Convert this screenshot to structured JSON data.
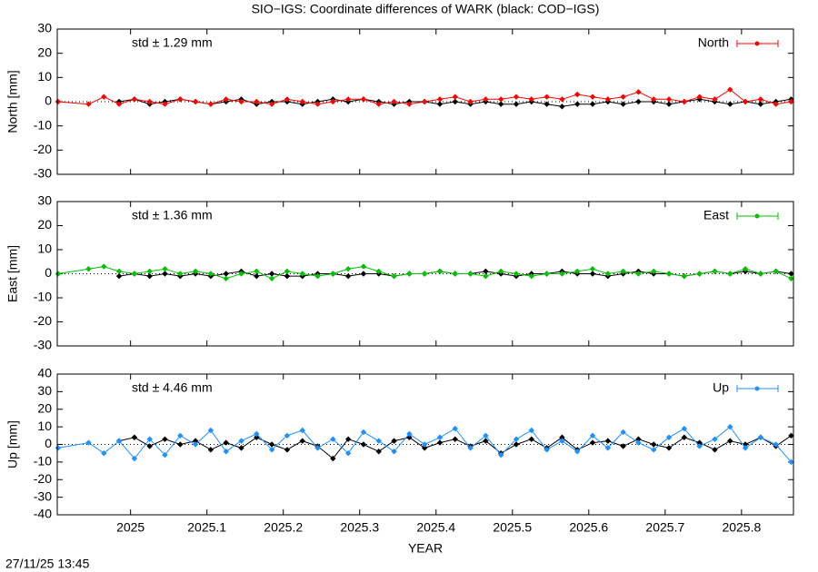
{
  "timestamp": "27/11/25 13:45",
  "chart_data": [
    {
      "type": "line",
      "title": "SIO−IGS: Coordinate differences of WARK (black: COD−IGS)",
      "ylabel": "North [mm]",
      "annotation": "std ± 1.29 mm",
      "annotation_color": "#ff0000",
      "xlim": [
        2024.904,
        2025.868
      ],
      "xticks": [
        2025,
        2025.1,
        2025.2,
        2025.3,
        2025.4,
        2025.5,
        2025.6,
        2025.7,
        2025.8
      ],
      "ylim": [
        -30,
        30
      ],
      "yticks": [
        -30,
        -20,
        -10,
        0,
        10,
        20,
        30
      ],
      "zeroline": true,
      "legend": "top-right",
      "x": [
        2024.905,
        2024.945,
        2024.965,
        2024.985,
        2025.005,
        2025.025,
        2025.045,
        2025.065,
        2025.085,
        2025.105,
        2025.125,
        2025.145,
        2025.165,
        2025.185,
        2025.205,
        2025.225,
        2025.245,
        2025.265,
        2025.285,
        2025.305,
        2025.325,
        2025.345,
        2025.365,
        2025.385,
        2025.405,
        2025.425,
        2025.445,
        2025.465,
        2025.485,
        2025.505,
        2025.525,
        2025.545,
        2025.565,
        2025.585,
        2025.605,
        2025.625,
        2025.645,
        2025.665,
        2025.685,
        2025.705,
        2025.725,
        2025.745,
        2025.765,
        2025.785,
        2025.805,
        2025.825,
        2025.845,
        2025.865
      ],
      "series": [
        {
          "color": "#000000",
          "values": [
            null,
            null,
            null,
            0,
            1,
            -1,
            0,
            1,
            0,
            -1,
            0,
            1,
            -1,
            0,
            0,
            -1,
            0,
            1,
            0,
            1,
            0,
            -1,
            0,
            0,
            -1,
            0,
            -1,
            0,
            -1,
            -1,
            0,
            -1,
            -2,
            -1,
            -1,
            0,
            -1,
            0,
            0,
            -1,
            0,
            1,
            0,
            -1,
            0,
            -1,
            0,
            1
          ]
        },
        {
          "name": "North",
          "color": "#ff0000",
          "values": [
            0,
            -1,
            2,
            -1,
            1,
            0,
            -1,
            1,
            0,
            -1,
            1,
            0,
            0,
            -1,
            1,
            0,
            -1,
            0,
            1,
            1,
            -1,
            0,
            -1,
            0,
            1,
            2,
            0,
            1,
            1,
            2,
            1,
            2,
            1,
            3,
            2,
            1,
            2,
            4,
            1,
            1,
            0,
            2,
            1,
            5,
            0,
            1,
            -1,
            0
          ]
        }
      ]
    },
    {
      "type": "line",
      "ylabel": "East [mm]",
      "annotation": "std ± 1.36 mm",
      "annotation_color": "#00c000",
      "xlim": [
        2024.904,
        2025.868
      ],
      "xticks": [
        2025,
        2025.1,
        2025.2,
        2025.3,
        2025.4,
        2025.5,
        2025.6,
        2025.7,
        2025.8
      ],
      "ylim": [
        -30,
        30
      ],
      "yticks": [
        -30,
        -20,
        -10,
        0,
        10,
        20,
        30
      ],
      "zeroline": true,
      "legend": "top-right",
      "x": [
        2024.905,
        2024.945,
        2024.965,
        2024.985,
        2025.005,
        2025.025,
        2025.045,
        2025.065,
        2025.085,
        2025.105,
        2025.125,
        2025.145,
        2025.165,
        2025.185,
        2025.205,
        2025.225,
        2025.245,
        2025.265,
        2025.285,
        2025.305,
        2025.325,
        2025.345,
        2025.365,
        2025.385,
        2025.405,
        2025.425,
        2025.445,
        2025.465,
        2025.485,
        2025.505,
        2025.525,
        2025.545,
        2025.565,
        2025.585,
        2025.605,
        2025.625,
        2025.645,
        2025.665,
        2025.685,
        2025.705,
        2025.725,
        2025.745,
        2025.765,
        2025.785,
        2025.805,
        2025.825,
        2025.845,
        2025.865
      ],
      "series": [
        {
          "color": "#000000",
          "values": [
            null,
            null,
            null,
            -1,
            0,
            -1,
            0,
            -1,
            0,
            -1,
            0,
            1,
            -1,
            0,
            -1,
            -1,
            0,
            0,
            -1,
            0,
            0,
            -1,
            0,
            0,
            1,
            0,
            0,
            1,
            0,
            -1,
            0,
            0,
            1,
            0,
            0,
            -1,
            0,
            1,
            0,
            0,
            -1,
            0,
            1,
            0,
            1,
            0,
            1,
            0
          ]
        },
        {
          "name": "East",
          "color": "#00c000",
          "values": [
            0,
            2,
            3,
            1,
            0,
            1,
            2,
            0,
            1,
            0,
            -2,
            0,
            1,
            -2,
            1,
            0,
            -1,
            0,
            2,
            3,
            1,
            -1,
            0,
            0,
            1,
            0,
            0,
            -1,
            1,
            0,
            -1,
            0,
            0,
            1,
            2,
            0,
            1,
            0,
            1,
            0,
            -1,
            0,
            1,
            0,
            2,
            0,
            1,
            -2
          ]
        }
      ]
    },
    {
      "type": "line",
      "xlabel": "YEAR",
      "ylabel": "Up [mm]",
      "annotation": "std ± 4.46 mm",
      "annotation_color": "#1e90ff",
      "xlim": [
        2024.904,
        2025.868
      ],
      "xticks": [
        2025,
        2025.1,
        2025.2,
        2025.3,
        2025.4,
        2025.5,
        2025.6,
        2025.7,
        2025.8
      ],
      "ylim": [
        -40,
        40
      ],
      "yticks": [
        -40,
        -30,
        -20,
        -10,
        0,
        10,
        20,
        30,
        40
      ],
      "zeroline": true,
      "legend": "top-right",
      "x": [
        2024.905,
        2024.945,
        2024.965,
        2024.985,
        2025.005,
        2025.025,
        2025.045,
        2025.065,
        2025.085,
        2025.105,
        2025.125,
        2025.145,
        2025.165,
        2025.185,
        2025.205,
        2025.225,
        2025.245,
        2025.265,
        2025.285,
        2025.305,
        2025.325,
        2025.345,
        2025.365,
        2025.385,
        2025.405,
        2025.425,
        2025.445,
        2025.465,
        2025.485,
        2025.505,
        2025.525,
        2025.545,
        2025.565,
        2025.585,
        2025.605,
        2025.625,
        2025.645,
        2025.665,
        2025.685,
        2025.705,
        2025.725,
        2025.745,
        2025.765,
        2025.785,
        2025.805,
        2025.825,
        2025.845,
        2025.865
      ],
      "series": [
        {
          "color": "#000000",
          "values": [
            null,
            null,
            null,
            2,
            4,
            -1,
            3,
            0,
            2,
            -3,
            1,
            -2,
            4,
            0,
            -3,
            2,
            -1,
            -8,
            3,
            0,
            -4,
            2,
            4,
            -2,
            1,
            3,
            -1,
            2,
            -5,
            0,
            3,
            -2,
            4,
            -3,
            1,
            2,
            -1,
            3,
            0,
            -2,
            4,
            1,
            -3,
            2,
            0,
            4,
            -1,
            5
          ]
        },
        {
          "name": "Up",
          "color": "#1e90ff",
          "values": [
            -2,
            1,
            -5,
            2,
            -8,
            3,
            -6,
            5,
            0,
            8,
            -4,
            2,
            6,
            -3,
            5,
            8,
            -2,
            3,
            -5,
            7,
            2,
            -4,
            6,
            0,
            4,
            9,
            -2,
            5,
            -6,
            3,
            8,
            -3,
            2,
            -4,
            5,
            -2,
            7,
            1,
            -3,
            4,
            9,
            -1,
            3,
            10,
            -2,
            4,
            0,
            -10
          ]
        }
      ]
    }
  ]
}
